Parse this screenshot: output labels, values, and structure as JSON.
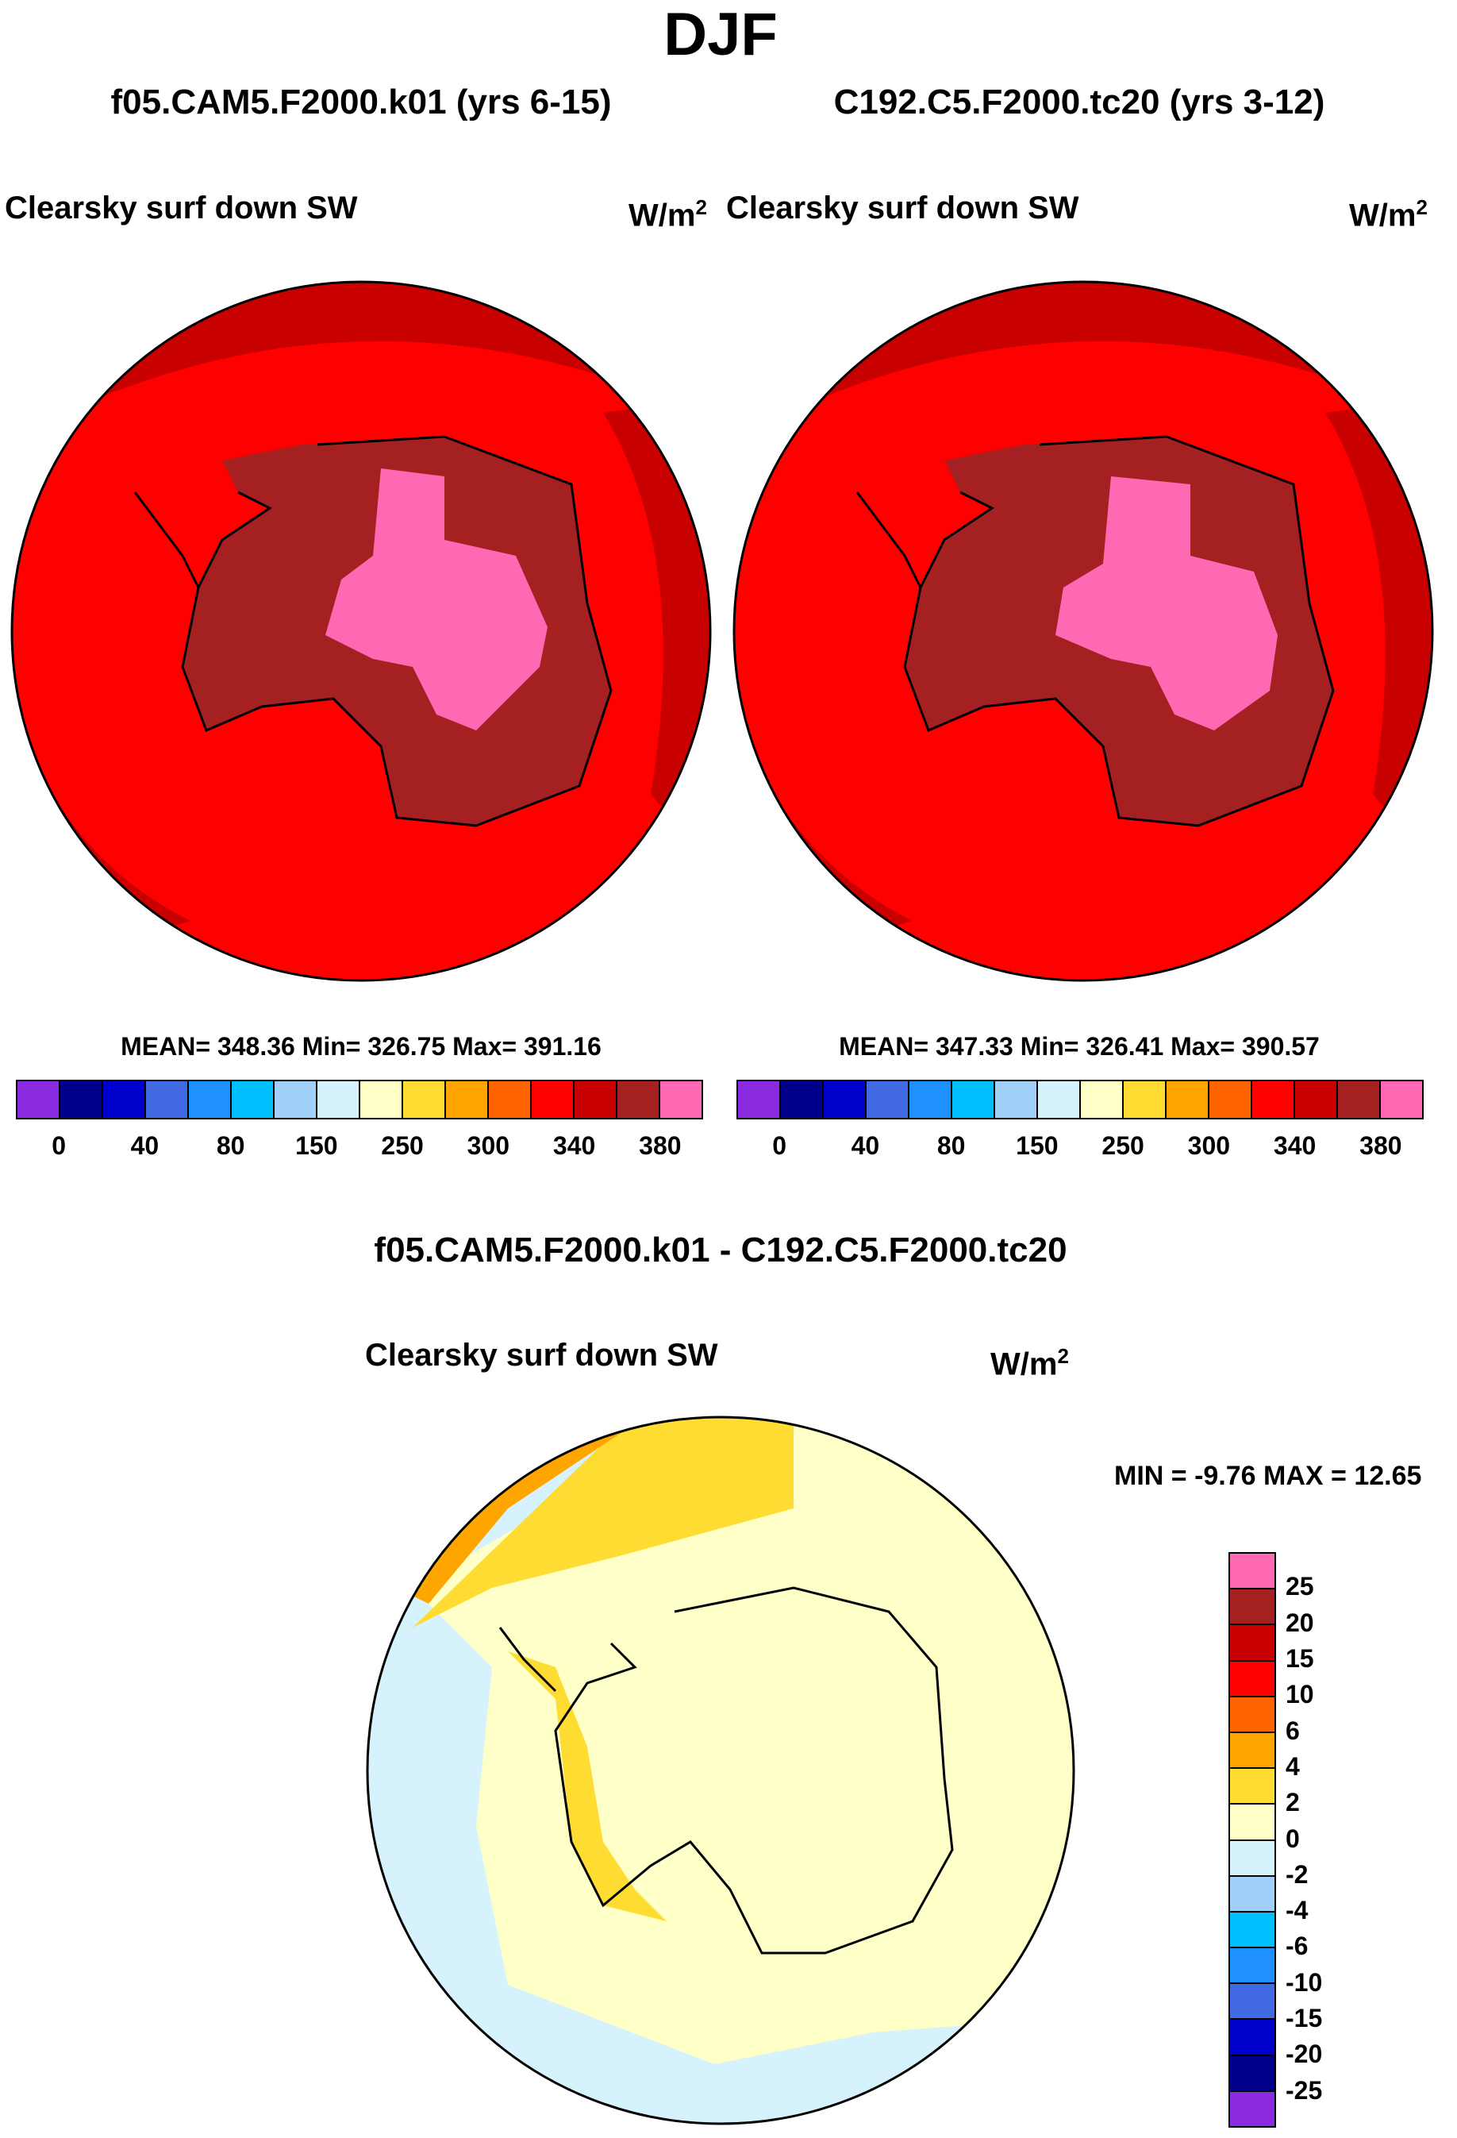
{
  "season": "DJF",
  "panels": [
    {
      "case_title": "f05.CAM5.F2000.k01 (yrs 6-15)",
      "variable": "Clearsky surf down SW",
      "units_base": "W/m",
      "units_exp": "2",
      "stats": "MEAN= 348.36  Min= 326.75  Max= 391.16"
    },
    {
      "case_title": "C192.C5.F2000.tc20 (yrs 3-12)",
      "variable": "Clearsky surf down SW",
      "units_base": "W/m",
      "units_exp": "2",
      "stats": "MEAN= 347.33  Min= 326.41  Max= 390.57"
    }
  ],
  "diff": {
    "title": "f05.CAM5.F2000.k01 - C192.C5.F2000.tc20",
    "variable": "Clearsky surf down SW",
    "units_base": "W/m",
    "units_exp": "2",
    "stats": "MIN =  -9.76 MAX =  12.65"
  },
  "abs_legend": {
    "colors": [
      "#8a2be2",
      "#00008b",
      "#0000cd",
      "#4169e1",
      "#1e90ff",
      "#00bfff",
      "#a0cffa",
      "#d6f2fc",
      "#ffffc8",
      "#ffdc32",
      "#ffa500",
      "#ff6400",
      "#ff0000",
      "#c80000",
      "#a52020",
      "#ff69b4"
    ],
    "ticks": [
      "0",
      "40",
      "80",
      "150",
      "250",
      "300",
      "340",
      "380"
    ]
  },
  "diff_legend": {
    "colors": [
      "#ff69b4",
      "#a52020",
      "#c80000",
      "#ff0000",
      "#ff6400",
      "#ffa500",
      "#ffdc32",
      "#ffffc8",
      "#d6f2fc",
      "#a0cffa",
      "#00bfff",
      "#1e90ff",
      "#4169e1",
      "#0000cd",
      "#00008b",
      "#8a2be2"
    ],
    "ticks": [
      "25",
      "20",
      "15",
      "10",
      "6",
      "4",
      "2",
      "0",
      "-2",
      "-4",
      "-6",
      "-10",
      "-15",
      "-20",
      "-25"
    ]
  }
}
